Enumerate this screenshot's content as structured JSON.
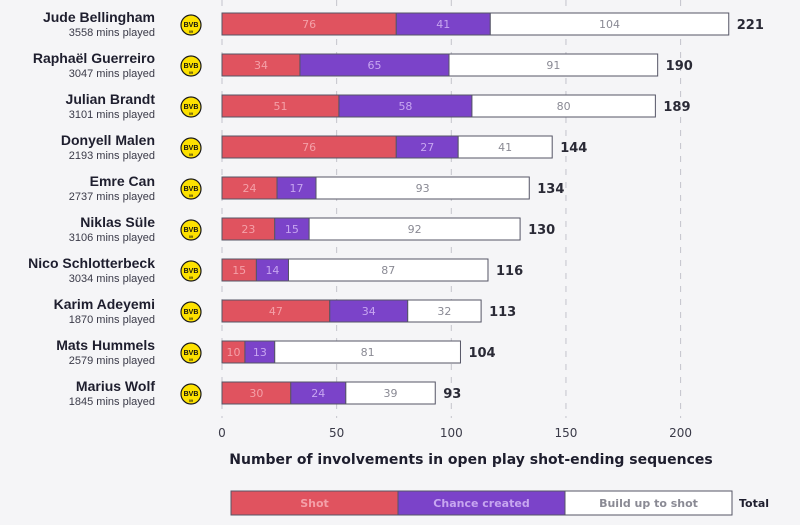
{
  "chart_data": {
    "type": "bar",
    "orientation": "horizontal",
    "stacked": true,
    "xlabel": "Number of involvements in open play shot-ending sequences",
    "xlim": [
      0,
      225
    ],
    "xticks": [
      0,
      50,
      100,
      150,
      200
    ],
    "grid": true,
    "legend_placement": "bottom",
    "legend_total_label": "Total",
    "colors": {
      "shot": "#e0535f",
      "chance": "#7b43c9",
      "build": "#ffffff",
      "border": "#555566"
    },
    "series": [
      {
        "key": "shot",
        "name": "Shot"
      },
      {
        "key": "chance",
        "name": "Chance created"
      },
      {
        "key": "build",
        "name": "Build up to shot"
      }
    ],
    "players": [
      {
        "name": "Jude Bellingham",
        "mins": "3558 mins played",
        "shot": 76,
        "chance": 41,
        "build": 104,
        "total": 221
      },
      {
        "name": "Raphaël Guerreiro",
        "mins": "3047 mins played",
        "shot": 34,
        "chance": 65,
        "build": 91,
        "total": 190
      },
      {
        "name": "Julian Brandt",
        "mins": "3101 mins played",
        "shot": 51,
        "chance": 58,
        "build": 80,
        "total": 189
      },
      {
        "name": "Donyell Malen",
        "mins": "2193 mins played",
        "shot": 76,
        "chance": 27,
        "build": 41,
        "total": 144
      },
      {
        "name": "Emre Can",
        "mins": "2737 mins played",
        "shot": 24,
        "chance": 17,
        "build": 93,
        "total": 134
      },
      {
        "name": "Niklas Süle",
        "mins": "3106 mins played",
        "shot": 23,
        "chance": 15,
        "build": 92,
        "total": 130
      },
      {
        "name": "Nico Schlotterbeck",
        "mins": "3034 mins played",
        "shot": 15,
        "chance": 14,
        "build": 87,
        "total": 116
      },
      {
        "name": "Karim Adeyemi",
        "mins": "1870 mins played",
        "shot": 47,
        "chance": 34,
        "build": 32,
        "total": 113
      },
      {
        "name": "Mats Hummels",
        "mins": "2579 mins played",
        "shot": 10,
        "chance": 13,
        "build": 81,
        "total": 104
      },
      {
        "name": "Marius Wolf",
        "mins": "1845 mins played",
        "shot": 30,
        "chance": 24,
        "build": 39,
        "total": 93
      }
    ],
    "club_badge": {
      "icon": "bvb-badge-icon",
      "text": "BVB",
      "subtext": "09",
      "color": "#fde100"
    }
  }
}
